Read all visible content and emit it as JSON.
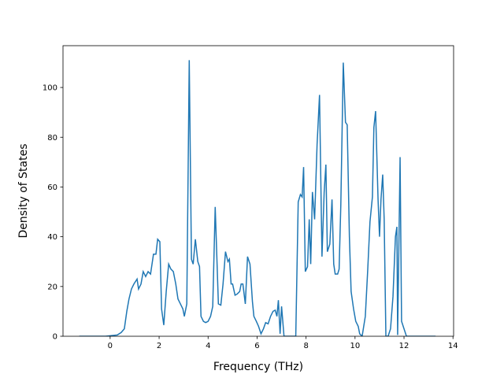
{
  "chart_data": {
    "type": "line",
    "x_label": "Frequency (THz)",
    "y_label": "Density of States",
    "xlim": [
      -1.925,
      14.025
    ],
    "ylim": [
      0,
      116.8
    ],
    "xticks": [
      0,
      2,
      4,
      6,
      8,
      10,
      12,
      14
    ],
    "yticks": [
      0,
      20,
      40,
      60,
      80,
      100
    ],
    "series": [
      {
        "color": "#1f77b4",
        "x": [
          -1.26,
          -0.19,
          0.29,
          0.45,
          0.58,
          0.68,
          0.77,
          0.87,
          0.97,
          1.1,
          1.16,
          1.26,
          1.35,
          1.45,
          1.55,
          1.65,
          1.77,
          1.87,
          1.94,
          2.03,
          2.1,
          2.19,
          2.29,
          2.39,
          2.48,
          2.58,
          2.68,
          2.77,
          2.87,
          2.97,
          3.03,
          3.13,
          3.23,
          3.32,
          3.39,
          3.48,
          3.58,
          3.65,
          3.71,
          3.81,
          3.9,
          4.0,
          4.1,
          4.19,
          4.29,
          4.42,
          4.52,
          4.61,
          4.71,
          4.81,
          4.87,
          4.94,
          5.0,
          5.1,
          5.19,
          5.29,
          5.35,
          5.42,
          5.52,
          5.61,
          5.71,
          5.81,
          5.87,
          5.97,
          6.06,
          6.16,
          6.26,
          6.35,
          6.45,
          6.55,
          6.65,
          6.74,
          6.81,
          6.87,
          6.94,
          7.0,
          7.1,
          7.39,
          7.58,
          7.68,
          7.77,
          7.84,
          7.9,
          7.97,
          8.06,
          8.13,
          8.19,
          8.26,
          8.35,
          8.45,
          8.55,
          8.65,
          8.74,
          8.81,
          8.87,
          8.97,
          9.06,
          9.13,
          9.19,
          9.29,
          9.35,
          9.42,
          9.52,
          9.61,
          9.68,
          9.77,
          9.84,
          9.94,
          10.03,
          10.13,
          10.19,
          10.29,
          10.42,
          10.52,
          10.61,
          10.71,
          10.77,
          10.84,
          10.94,
          11.0,
          11.06,
          11.13,
          11.19,
          11.26,
          11.35,
          11.45,
          11.55,
          11.65,
          11.71,
          11.74,
          11.84,
          11.9,
          12.0,
          12.1,
          13.29
        ],
        "values": [
          0,
          0,
          0.5,
          1.5,
          3,
          10,
          15,
          19,
          21,
          23,
          19,
          21,
          26,
          24,
          26,
          25,
          33,
          33,
          39,
          38,
          11,
          4.5,
          18,
          29,
          27,
          26,
          21,
          15,
          13,
          11,
          8,
          13,
          111,
          31,
          29,
          39,
          30,
          28,
          8,
          6,
          5.5,
          6,
          8,
          12,
          52,
          13,
          12.5,
          21,
          34,
          30,
          31,
          21,
          21,
          16.5,
          17,
          18,
          21,
          21,
          13,
          32,
          29,
          14,
          8,
          6,
          4,
          1,
          3,
          5.5,
          5,
          8,
          10,
          10.5,
          8,
          14.5,
          1,
          12,
          0,
          0,
          0,
          54,
          57,
          56,
          68,
          26,
          28,
          47,
          29,
          58,
          47,
          77,
          97,
          32,
          58,
          69,
          34,
          37,
          55,
          29,
          25,
          25,
          27,
          53,
          110,
          86,
          85,
          40,
          18,
          11,
          6,
          4,
          1,
          0,
          8,
          27,
          46,
          56,
          84,
          90.5,
          55,
          40,
          55,
          65,
          47,
          0,
          0,
          3,
          16,
          40,
          44,
          0.5,
          72,
          6,
          3,
          0,
          0
        ]
      }
    ]
  }
}
